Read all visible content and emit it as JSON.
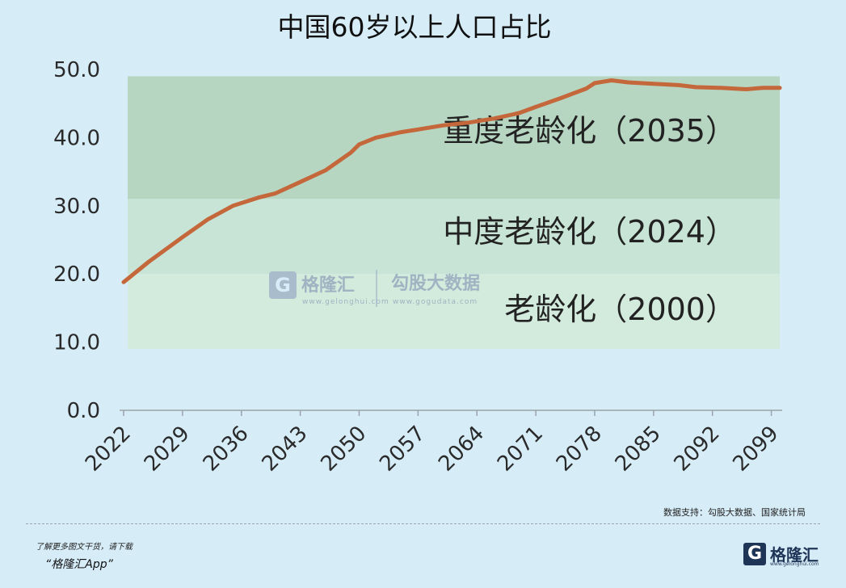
{
  "title": "中国60岁以上人口占比",
  "chart_data": {
    "type": "line",
    "title": "中国60岁以上人口占比",
    "ylim": [
      0,
      50
    ],
    "y_ticks": [
      "0.0",
      "10.0",
      "20.0",
      "30.0",
      "40.0",
      "50.0"
    ],
    "x_ticks": [
      "2022",
      "2029",
      "2036",
      "2043",
      "2050",
      "2057",
      "2064",
      "2071",
      "2078",
      "2085",
      "2092",
      "2099"
    ],
    "xlim": [
      2022,
      2100
    ],
    "series": [
      {
        "color": "#c4673a",
        "x": [
          2022,
          2025,
          2029,
          2032,
          2035,
          2038,
          2040,
          2043,
          2046,
          2049,
          2050,
          2052,
          2055,
          2057,
          2060,
          2063,
          2066,
          2069,
          2071,
          2074,
          2077,
          2078,
          2080,
          2082,
          2085,
          2088,
          2090,
          2093,
          2096,
          2098,
          2100
        ],
        "y": [
          18.8,
          21.8,
          25.4,
          28.0,
          30.0,
          31.2,
          31.8,
          33.5,
          35.2,
          37.8,
          39.0,
          40.0,
          40.8,
          41.2,
          41.8,
          42.2,
          42.8,
          43.6,
          44.5,
          45.8,
          47.2,
          48.0,
          48.4,
          48.1,
          47.9,
          47.7,
          47.4,
          47.3,
          47.1,
          47.3,
          47.3
        ]
      }
    ],
    "bands": [
      {
        "label": "重度老龄化（2035）",
        "from": 31,
        "to": 49,
        "color": "#b6d6c2"
      },
      {
        "label": "中度老龄化（2024）",
        "from": 20,
        "to": 31,
        "color": "#c8e4d6"
      },
      {
        "label": "老龄化（2000）",
        "from": 9,
        "to": 20,
        "color": "#d3ebdd"
      }
    ],
    "grid": false,
    "legend": "none"
  },
  "watermark": {
    "brand": "格隆汇",
    "brand_url": "www.gelonghui.com",
    "data_name": "勾股大数据",
    "data_url": "www.gogudata.com"
  },
  "footer": {
    "source": "数据支持：勾股大数据、国家统计局",
    "download_line": "了解更多图文干货，请下载",
    "app_name": "“格隆汇App”",
    "logo_text": "格隆汇",
    "logo_url": "www.gelonghui.com"
  },
  "colors": {
    "background": "#d6ecf7",
    "line": "#c4673a",
    "brand": "#1f3557"
  }
}
